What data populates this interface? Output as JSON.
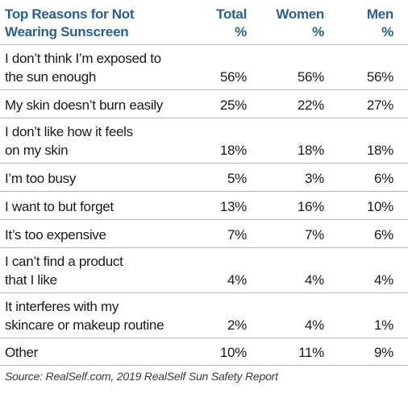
{
  "chart_data": {
    "type": "table",
    "header": {
      "reason": "Top Reasons for Not\nWearing Sunscreen",
      "total": "Total\n%",
      "women": "Women\n%",
      "men": "Men\n%"
    },
    "rows": [
      {
        "reason": "I don’t think I’m exposed to\nthe sun enough",
        "total": "56%",
        "women": "56%",
        "men": "56%"
      },
      {
        "reason": "My skin doesn’t burn easily",
        "total": "25%",
        "women": "22%",
        "men": "27%"
      },
      {
        "reason": "I don’t like how it feels\non my skin",
        "total": "18%",
        "women": "18%",
        "men": "18%"
      },
      {
        "reason": "I’m too busy",
        "total": "5%",
        "women": "3%",
        "men": "6%"
      },
      {
        "reason": "I want to but forget",
        "total": "13%",
        "women": "16%",
        "men": "10%"
      },
      {
        "reason": "It’s too expensive",
        "total": "7%",
        "women": "7%",
        "men": "6%"
      },
      {
        "reason": "I can’t find a product\nthat I like",
        "total": "4%",
        "women": "4%",
        "men": "4%"
      },
      {
        "reason": "It interferes with my\nskincare or makeup routine",
        "total": "2%",
        "women": "4%",
        "men": "1%"
      },
      {
        "reason": "Other",
        "total": "10%",
        "women": "11%",
        "men": "9%"
      }
    ],
    "source": "Source: RealSelf.com, 2019 RealSelf Sun Safety Report"
  },
  "colors": {
    "header_text": "#2a5f93",
    "body_text": "#1a1a1a",
    "rule": "#b9b9b9"
  }
}
